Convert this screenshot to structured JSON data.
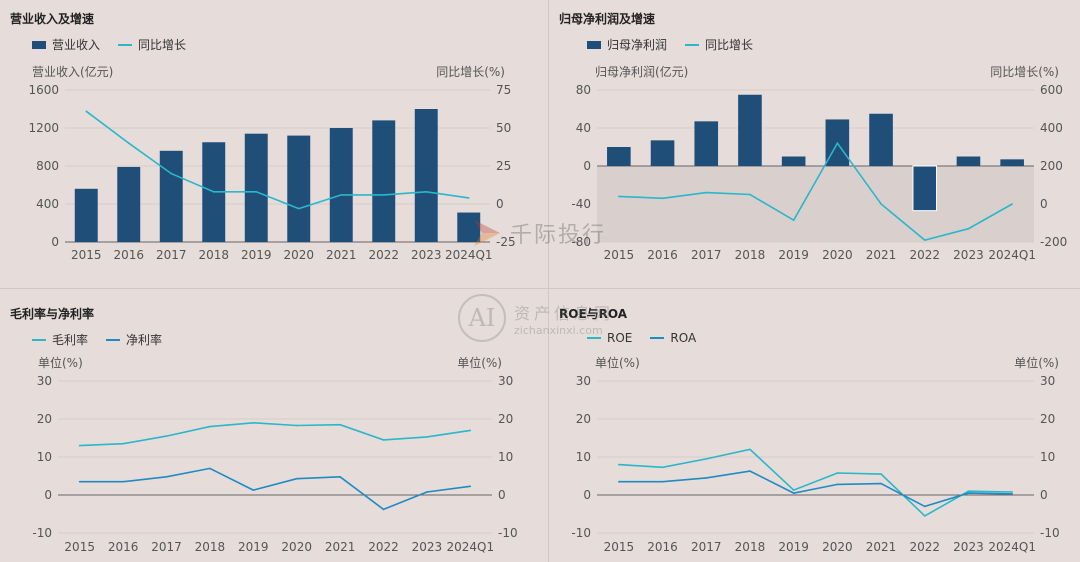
{
  "colors": {
    "bar": "#1f4e79",
    "line_teal": "#2ab7c9",
    "line_blue": "#1e8bc3",
    "neg_area": "#d9cfcd",
    "axis": "#666666",
    "grid": "#d6cccb"
  },
  "watermark": {
    "brand": "千际投行",
    "site_cn": "资产信息网",
    "site_en": "zichanxinxi.com",
    "logo": "AI"
  },
  "chart_data": [
    {
      "id": "revenue",
      "type": "bar",
      "title": "营业收入及增速",
      "legend": [
        "营业收入",
        "同比增长"
      ],
      "ylabel": "营业收入(亿元)",
      "y2label": "同比增长(%)",
      "categories": [
        "2015",
        "2016",
        "2017",
        "2018",
        "2019",
        "2020",
        "2021",
        "2022",
        "2023",
        "2024Q1"
      ],
      "ylim": [
        0,
        1600
      ],
      "yticks": [
        0,
        400,
        800,
        1200,
        1600
      ],
      "y2lim": [
        -25,
        75
      ],
      "y2ticks": [
        -25,
        0,
        25,
        50,
        75
      ],
      "series": [
        {
          "name": "营业收入",
          "kind": "bar",
          "axis": "left",
          "values": [
            560,
            790,
            960,
            1050,
            1140,
            1120,
            1200,
            1280,
            1400,
            310
          ]
        },
        {
          "name": "同比增长",
          "kind": "line",
          "axis": "right",
          "values": [
            61,
            40,
            20,
            8,
            8,
            -3,
            6,
            6,
            8,
            4
          ]
        }
      ]
    },
    {
      "id": "netprofit",
      "type": "bar",
      "title": "归母净利润及增速",
      "legend": [
        "归母净利润",
        "同比增长"
      ],
      "ylabel": "归母净利润(亿元)",
      "y2label": "同比增长(%)",
      "categories": [
        "2015",
        "2016",
        "2017",
        "2018",
        "2019",
        "2020",
        "2021",
        "2022",
        "2023",
        "2024Q1"
      ],
      "ylim": [
        -80,
        80
      ],
      "yticks": [
        -80,
        -40,
        0,
        40,
        80
      ],
      "y2lim": [
        -200,
        600
      ],
      "y2ticks": [
        -200,
        0,
        200,
        400,
        600
      ],
      "series": [
        {
          "name": "归母净利润",
          "kind": "bar",
          "axis": "left",
          "values": [
            20,
            27,
            47,
            75,
            10,
            49,
            55,
            -47,
            10,
            7
          ]
        },
        {
          "name": "同比增长",
          "kind": "line",
          "axis": "right",
          "values": [
            40,
            30,
            60,
            50,
            -85,
            320,
            0,
            -190,
            -130,
            0
          ]
        }
      ]
    },
    {
      "id": "margin",
      "type": "line",
      "title": "毛利率与净利率",
      "legend": [
        "毛利率",
        "净利率"
      ],
      "ylabel": "单位(%)",
      "y2label": "单位(%)",
      "categories": [
        "2015",
        "2016",
        "2017",
        "2018",
        "2019",
        "2020",
        "2021",
        "2022",
        "2023",
        "2024Q1"
      ],
      "ylim": [
        -10,
        30
      ],
      "yticks": [
        -10,
        0,
        10,
        20,
        30
      ],
      "series": [
        {
          "name": "毛利率",
          "values": [
            13,
            13.5,
            15.5,
            18,
            19,
            18.3,
            18.5,
            14.5,
            15.3,
            17
          ]
        },
        {
          "name": "净利率",
          "values": [
            3.5,
            3.5,
            4.8,
            7,
            1.3,
            4.3,
            4.8,
            -3.8,
            0.8,
            2.3
          ]
        }
      ]
    },
    {
      "id": "roe",
      "type": "line",
      "title": "ROE与ROA",
      "legend": [
        "ROE",
        "ROA"
      ],
      "ylabel": "单位(%)",
      "y2label": "单位(%)",
      "categories": [
        "2015",
        "2016",
        "2017",
        "2018",
        "2019",
        "2020",
        "2021",
        "2022",
        "2023",
        "2024Q1"
      ],
      "ylim": [
        -10,
        30
      ],
      "yticks": [
        -10,
        0,
        10,
        20,
        30
      ],
      "series": [
        {
          "name": "ROE",
          "values": [
            8,
            7.3,
            9.5,
            12,
            1.3,
            5.8,
            5.5,
            -5.5,
            1,
            0.8
          ]
        },
        {
          "name": "ROA",
          "values": [
            3.5,
            3.5,
            4.5,
            6.3,
            0.5,
            2.8,
            3,
            -3,
            0.5,
            0.3
          ]
        }
      ]
    }
  ]
}
